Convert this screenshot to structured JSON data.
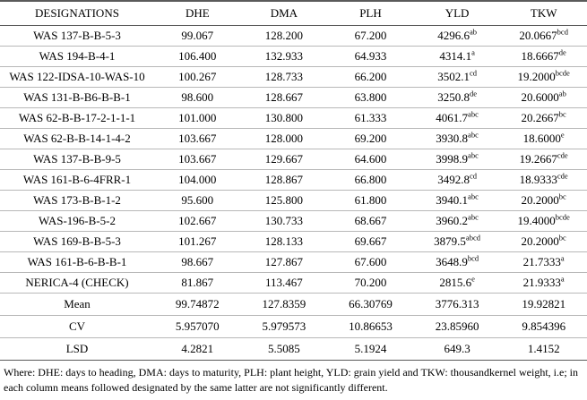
{
  "table": {
    "headers": [
      "DESIGNATIONS",
      "DHE",
      "DMA",
      "PLH",
      "YLD",
      "TKW"
    ],
    "rows": [
      {
        "designation": "WAS 137-B-B-5-3",
        "dhe": "99.067",
        "dma": "128.200",
        "plh": "67.200",
        "yld": "4296.6",
        "yld_sup": "ab",
        "tkw": "20.0667",
        "tkw_sup": "bcd"
      },
      {
        "designation": "WAS 194-B-4-1",
        "dhe": "106.400",
        "dma": "132.933",
        "plh": "64.933",
        "yld": "4314.1",
        "yld_sup": "a",
        "tkw": "18.6667",
        "tkw_sup": "de"
      },
      {
        "designation": "WAS 122-IDSA-10-WAS-10",
        "dhe": "100.267",
        "dma": "128.733",
        "plh": "66.200",
        "yld": "3502.1",
        "yld_sup": "cd",
        "tkw": "19.2000",
        "tkw_sup": "bcde"
      },
      {
        "designation": "WAS 131-B-B6-B-B-1",
        "dhe": "98.600",
        "dma": "128.667",
        "plh": "63.800",
        "yld": "3250.8",
        "yld_sup": "de",
        "tkw": "20.6000",
        "tkw_sup": "ab"
      },
      {
        "designation": "WAS 62-B-B-17-2-1-1-1",
        "dhe": "101.000",
        "dma": "130.800",
        "plh": "61.333",
        "yld": "4061.7",
        "yld_sup": "abc",
        "tkw": "20.2667",
        "tkw_sup": "bc"
      },
      {
        "designation": "WAS 62-B-B-14-1-4-2",
        "dhe": "103.667",
        "dma": "128.000",
        "plh": "69.200",
        "yld": "3930.8",
        "yld_sup": "abc",
        "tkw": "18.6000",
        "tkw_sup": "e"
      },
      {
        "designation": "WAS 137-B-B-9-5",
        "dhe": "103.667",
        "dma": "129.667",
        "plh": "64.600",
        "yld": "3998.9",
        "yld_sup": "abc",
        "tkw": "19.2667",
        "tkw_sup": "cde"
      },
      {
        "designation": "WAS 161-B-6-4FRR-1",
        "dhe": "104.000",
        "dma": "128.867",
        "plh": "66.800",
        "yld": "3492.8",
        "yld_sup": "cd",
        "tkw": "18.9333",
        "tkw_sup": "cde"
      },
      {
        "designation": "WAS 173-B-B-1-2",
        "dhe": "95.600",
        "dma": "125.800",
        "plh": "61.800",
        "yld": "3940.1",
        "yld_sup": "abc",
        "tkw": "20.2000",
        "tkw_sup": "bc"
      },
      {
        "designation": "WAS-196-B-5-2",
        "dhe": "102.667",
        "dma": "130.733",
        "plh": "68.667",
        "yld": "3960.2",
        "yld_sup": "abc",
        "tkw": "19.4000",
        "tkw_sup": "bcde"
      },
      {
        "designation": "WAS 169-B-B-5-3",
        "dhe": "101.267",
        "dma": "128.133",
        "plh": "69.667",
        "yld": "3879.5",
        "yld_sup": "abcd",
        "tkw": "20.2000",
        "tkw_sup": "bc"
      },
      {
        "designation": "WAS 161-B-6-B-B-1",
        "dhe": "98.667",
        "dma": "127.867",
        "plh": "67.600",
        "yld": "3648.9",
        "yld_sup": "bcd",
        "tkw": "21.7333",
        "tkw_sup": "a"
      },
      {
        "designation": "NERICA-4 (CHECK)",
        "dhe": "81.867",
        "dma": "113.467",
        "plh": "70.200",
        "yld": "2815.6",
        "yld_sup": "e",
        "tkw": "21.9333",
        "tkw_sup": "a"
      }
    ],
    "summary": [
      {
        "label": "Mean",
        "dhe": "99.74872",
        "dma": "127.8359",
        "plh": "66.30769",
        "yld": "3776.313",
        "tkw": "19.92821"
      },
      {
        "label": "CV",
        "dhe": "5.957070",
        "dma": "5.979573",
        "plh": "10.86653",
        "yld": "23.85960",
        "tkw": "9.854396"
      },
      {
        "label": "LSD",
        "dhe": "4.2821",
        "dma": "5.5085",
        "plh": "5.1924",
        "yld": "649.3",
        "tkw": "1.4152"
      }
    ]
  },
  "footnote": {
    "text": "Where: DHE: days to heading, DMA: days to maturity, PLH: plant height, YLD: grain yield and TKW: thousandkernel weight, i.e; in each column means followed designated by the same latter are not significantly different."
  }
}
